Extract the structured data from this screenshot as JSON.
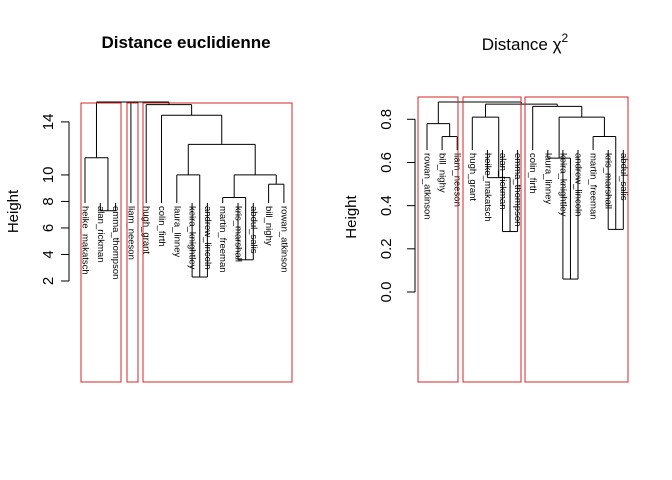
{
  "chart_data": [
    {
      "type": "dendrogram",
      "title": "Distance euclidienne",
      "ylabel": "Height",
      "ylim": [
        2,
        15.5
      ],
      "yticks": [
        2,
        4,
        6,
        8,
        10,
        14
      ],
      "leaves": [
        "heike_makatsch",
        "alan_rickman",
        "emma_thompson",
        "liam_neeson",
        "hugh_grant",
        "colin_firth",
        "laura_linney",
        "keira_knightley",
        "andrew_lincoln",
        "martin_freeman",
        "kris_marshall",
        "abdul_salis",
        "bill_nighy",
        "rowan_atkinson"
      ],
      "merges": [
        {
          "a": 1,
          "b": 2,
          "height": 7.3
        },
        {
          "a": 7,
          "b": 8,
          "height": 2.3
        },
        {
          "a": 10,
          "b": 11,
          "height": 3.6
        },
        {
          "a": 12,
          "b": 13,
          "height": 9.3
        },
        {
          "a": 9,
          "b": 16,
          "height": 8.3
        },
        {
          "a": 0,
          "b": 14,
          "height": 11.3
        },
        {
          "a": 6,
          "b": 15,
          "height": 10.0
        },
        {
          "a": 18,
          "b": 17,
          "height": 10.0
        },
        {
          "a": 20,
          "b": 21,
          "height": 12.3
        },
        {
          "a": 5,
          "b": 22,
          "height": 14.5
        },
        {
          "a": 4,
          "b": 23,
          "height": 15.3
        },
        {
          "a": 3,
          "b": 24,
          "height": 15.7
        },
        {
          "a": 19,
          "b": 25,
          "height": 16.4
        }
      ],
      "clusters": [
        [
          0,
          2
        ],
        [
          3,
          3
        ],
        [
          4,
          13
        ]
      ]
    },
    {
      "type": "dendrogram",
      "title": "Distance χ",
      "title_sup": "2",
      "ylabel": "Height",
      "ylim": [
        0,
        0.88
      ],
      "yticks": [
        0.0,
        0.2,
        0.4,
        0.6,
        0.8
      ],
      "ytick_labels": [
        "0.0",
        "0.2",
        "0.4",
        "0.6",
        "0.8"
      ],
      "leaves": [
        "rowan_atkinson",
        "bill_nighy",
        "liam_neeson",
        "hugh_grant",
        "heike_makatsch",
        "alan_rickman",
        "emma_thompson",
        "colin_firth",
        "laura_linney",
        "keira_knightley",
        "andrew_lincoln",
        "martin_freeman",
        "kris_marshall",
        "abdul_salis"
      ],
      "merges": [
        {
          "a": 1,
          "b": 2,
          "height": 0.72
        },
        {
          "a": 5,
          "b": 6,
          "height": 0.28
        },
        {
          "a": 9,
          "b": 10,
          "height": 0.06
        },
        {
          "a": 12,
          "b": 13,
          "height": 0.29
        },
        {
          "a": 0,
          "b": 14,
          "height": 0.78
        },
        {
          "a": 4,
          "b": 15,
          "height": 0.53
        },
        {
          "a": 8,
          "b": 16,
          "height": 0.62
        },
        {
          "a": 11,
          "b": 17,
          "height": 0.72
        },
        {
          "a": 3,
          "b": 19,
          "height": 0.81
        },
        {
          "a": 20,
          "b": 21,
          "height": 0.81
        },
        {
          "a": 7,
          "b": 23,
          "height": 0.86
        },
        {
          "a": 22,
          "b": 24,
          "height": 0.87
        },
        {
          "a": 18,
          "b": 25,
          "height": 0.92
        }
      ],
      "clusters": [
        [
          0,
          2
        ],
        [
          3,
          6
        ],
        [
          7,
          13
        ]
      ]
    }
  ]
}
